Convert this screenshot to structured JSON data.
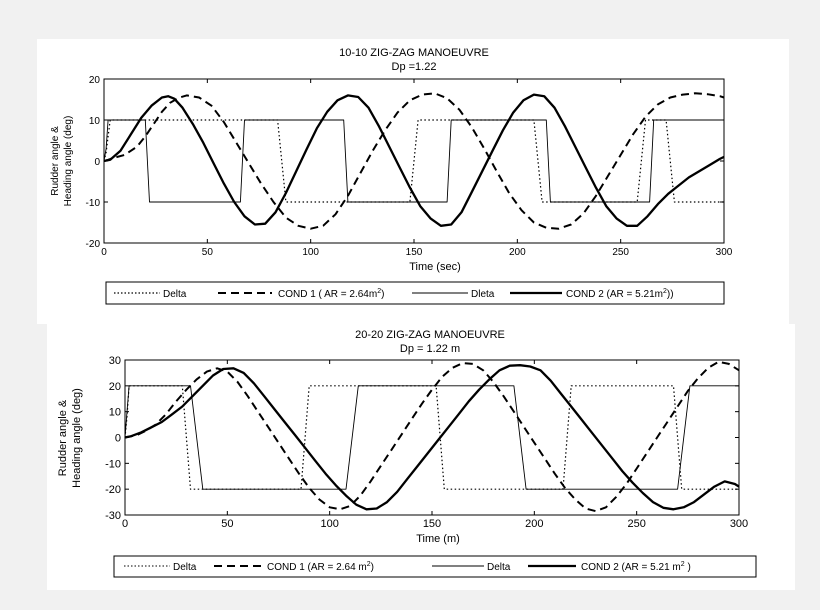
{
  "chart_data": [
    {
      "type": "line",
      "title": "10-10 ZIG-ZAG MANOEUVRE",
      "subtitle": "Dp =1.22",
      "xlabel": "Time (sec)",
      "ylabel_line1": "Rudder angle &",
      "ylabel_line2": "Heading angle (deg)",
      "xlim": [
        0,
        300
      ],
      "ylim": [
        -20,
        20
      ],
      "xticks": [
        0,
        50,
        100,
        150,
        200,
        250,
        300
      ],
      "yticks": [
        20,
        10,
        0,
        -10,
        -20
      ],
      "grid": false,
      "legend_position": "bottom",
      "series": [
        {
          "name": "Delta",
          "style": "dotted",
          "color": "#000000",
          "x": [
            0,
            1,
            2,
            3,
            4,
            5,
            6,
            7,
            84,
            88,
            148,
            152,
            208,
            212,
            258,
            262,
            272,
            276,
            300
          ],
          "y": [
            0,
            2,
            6,
            10,
            10,
            10,
            10,
            10,
            10,
            -10,
            -10,
            10,
            10,
            -10,
            -10,
            10,
            10,
            -10,
            -10
          ]
        },
        {
          "name": "COND 1 ( AR = 2.64m²)",
          "style": "dashed",
          "color": "#000000",
          "x": [
            0,
            2,
            5,
            10,
            16,
            20,
            24,
            28,
            32,
            36,
            40,
            46,
            52,
            58,
            64,
            70,
            76,
            82,
            88,
            94,
            100,
            106,
            112,
            118,
            124,
            130,
            136,
            142,
            148,
            154,
            160,
            166,
            172,
            178,
            184,
            190,
            196,
            202,
            208,
            214,
            220,
            226,
            232,
            238,
            244,
            250,
            256,
            262,
            268,
            274,
            280,
            286,
            292,
            298,
            300
          ],
          "y": [
            0,
            0.3,
            0.8,
            1.5,
            3.5,
            6,
            9,
            12,
            14.2,
            15.4,
            16,
            15.5,
            13.5,
            9.5,
            4.5,
            -0.5,
            -5.5,
            -10,
            -13.8,
            -15.8,
            -16.5,
            -15.8,
            -13,
            -8.5,
            -3,
            2.5,
            7.5,
            11.8,
            14.8,
            16.2,
            16.5,
            15.3,
            12.5,
            8.2,
            3,
            -2.5,
            -7.8,
            -12,
            -15,
            -16.3,
            -16.5,
            -15.5,
            -12.8,
            -8.5,
            -3.5,
            1.5,
            6.5,
            10.8,
            13.8,
            15.5,
            16.2,
            16.5,
            16.3,
            15.8,
            15.5
          ]
        },
        {
          "name": "Dleta",
          "style": "solid-thin",
          "color": "#000000",
          "x": [
            0,
            1,
            2,
            3,
            4,
            5,
            6,
            7,
            8,
            20,
            22,
            66,
            68,
            116,
            118,
            166,
            168,
            214,
            216,
            264,
            266,
            300
          ],
          "y": [
            0,
            3,
            10,
            10,
            10,
            10,
            10,
            10,
            10,
            10,
            -10,
            -10,
            10,
            10,
            -10,
            -10,
            10,
            10,
            -10,
            -10,
            10,
            10
          ]
        },
        {
          "name": "COND 2 (AR = 5.21m²))",
          "style": "solid-thick",
          "color": "#000000",
          "x": [
            0,
            3,
            8,
            13,
            18,
            23,
            28,
            31,
            34,
            38,
            43,
            48,
            53,
            58,
            63,
            68,
            73,
            78,
            83,
            88,
            93,
            98,
            103,
            108,
            113,
            118,
            123,
            128,
            133,
            138,
            143,
            148,
            153,
            158,
            163,
            168,
            173,
            178,
            183,
            188,
            193,
            198,
            203,
            208,
            213,
            218,
            223,
            228,
            233,
            238,
            243,
            248,
            253,
            258,
            263,
            268,
            273,
            278,
            283,
            288,
            293,
            298,
            300
          ],
          "y": [
            0,
            0.3,
            2.5,
            6.5,
            10.5,
            13.5,
            15.5,
            15.8,
            15.2,
            13,
            9,
            4.5,
            -0.5,
            -5.5,
            -10,
            -13.5,
            -15.5,
            -15.3,
            -12.5,
            -7.8,
            -2.5,
            2.8,
            8,
            12,
            14.8,
            16,
            15.6,
            13,
            8.5,
            3.5,
            -1.5,
            -6.5,
            -11,
            -14,
            -15.8,
            -15.5,
            -12.5,
            -7.5,
            -2.5,
            2.5,
            7.5,
            11.8,
            14.8,
            16.2,
            15.8,
            13,
            8.5,
            3.5,
            -1.5,
            -6.5,
            -11,
            -14,
            -15.8,
            -15.8,
            -13.5,
            -10.5,
            -8,
            -6,
            -4,
            -2.5,
            -1,
            0.5,
            1
          ]
        }
      ]
    },
    {
      "type": "line",
      "title": "20-20 ZIG-ZAG MANOEUVRE",
      "subtitle": "Dp = 1.22 m",
      "xlabel": "Time (m)",
      "ylabel_line1": "Rudder angle &",
      "ylabel_line2": "Heading angle (deg)",
      "xlim": [
        0,
        300
      ],
      "ylim": [
        -30,
        30
      ],
      "xticks": [
        0,
        50,
        100,
        150,
        200,
        250,
        300
      ],
      "yticks": [
        30,
        20,
        10,
        0,
        -10,
        -20,
        -30
      ],
      "grid": false,
      "legend_position": "bottom",
      "series": [
        {
          "name": "Delta",
          "style": "dotted",
          "color": "#000000",
          "x": [
            0,
            1,
            2,
            3,
            4,
            5,
            28,
            32,
            86,
            90,
            152,
            156,
            214,
            218,
            268,
            272,
            300
          ],
          "y": [
            0,
            8,
            20,
            20,
            20,
            20,
            20,
            -20,
            -20,
            20,
            20,
            -20,
            -20,
            20,
            20,
            -20,
            -20
          ]
        },
        {
          "name": "COND 1 (AR = 2.64 m²)",
          "style": "dashed",
          "color": "#000000",
          "x": [
            0,
            2,
            6,
            10,
            15,
            20,
            25,
            30,
            35,
            40,
            45,
            50,
            55,
            60,
            65,
            70,
            75,
            80,
            85,
            90,
            95,
            100,
            105,
            110,
            115,
            120,
            125,
            130,
            135,
            140,
            145,
            150,
            155,
            160,
            165,
            170,
            175,
            180,
            185,
            190,
            195,
            200,
            205,
            210,
            215,
            220,
            225,
            230,
            235,
            240,
            245,
            250,
            255,
            260,
            265,
            270,
            275,
            280,
            285,
            290,
            295,
            300
          ],
          "y": [
            0,
            0.3,
            1,
            2.5,
            5,
            9,
            14,
            18.5,
            22.5,
            25.5,
            26.8,
            25.5,
            21.5,
            16,
            10,
            4,
            -2,
            -8,
            -14,
            -19.5,
            -24,
            -27,
            -27.8,
            -26.5,
            -22.5,
            -17,
            -11,
            -5,
            1,
            7,
            13,
            18.5,
            23.5,
            27,
            28.8,
            28.5,
            26,
            21.5,
            16,
            10,
            4,
            -2,
            -8,
            -14,
            -19.5,
            -24,
            -27.5,
            -28.5,
            -27,
            -23,
            -18,
            -12,
            -6,
            0,
            6,
            12,
            18,
            23,
            27,
            29.3,
            28.5,
            26
          ]
        },
        {
          "name": "Delta",
          "style": "solid-thin",
          "color": "#000000",
          "x": [
            0,
            1,
            2,
            3,
            4,
            5,
            6,
            32,
            38,
            108,
            114,
            190,
            196,
            270,
            276,
            300
          ],
          "y": [
            0,
            10,
            20,
            20,
            20,
            20,
            20,
            20,
            -20,
            -20,
            20,
            20,
            -20,
            -20,
            20,
            20
          ]
        },
        {
          "name": "COND 2 (AR = 5.21 m² )",
          "style": "solid-thick",
          "color": "#000000",
          "x": [
            0,
            3,
            8,
            13,
            18,
            23,
            28,
            33,
            38,
            43,
            48,
            53,
            58,
            63,
            68,
            73,
            78,
            83,
            88,
            93,
            98,
            103,
            108,
            113,
            118,
            123,
            128,
            133,
            138,
            143,
            148,
            153,
            158,
            163,
            168,
            173,
            178,
            183,
            188,
            193,
            198,
            203,
            208,
            213,
            218,
            223,
            228,
            233,
            238,
            243,
            248,
            253,
            258,
            263,
            268,
            273,
            278,
            283,
            288,
            293,
            298,
            300
          ],
          "y": [
            0,
            0.5,
            2,
            4,
            6,
            9,
            12,
            16,
            20,
            24,
            26.5,
            26.8,
            25,
            21,
            16,
            11,
            6,
            1,
            -4,
            -9,
            -14,
            -18.5,
            -22.5,
            -26,
            -27.8,
            -27.5,
            -25,
            -21,
            -16,
            -11,
            -6,
            -1,
            4,
            9,
            14,
            18.5,
            22.5,
            26,
            27.8,
            28,
            27.5,
            26,
            22,
            17,
            12,
            7,
            2,
            -3,
            -8,
            -13,
            -17.5,
            -21.5,
            -25,
            -27.2,
            -27.8,
            -27,
            -25,
            -22,
            -19,
            -17,
            -18,
            -19
          ]
        }
      ]
    }
  ],
  "legend_top": {
    "delta_label": "Delta",
    "cond1_label": "COND 1 ( AR = 2.64m",
    "cond1_sup": "2",
    "cond1_close": ")",
    "dleta_label": "Dleta",
    "cond2_label": "COND 2 (AR = 5.21m",
    "cond2_sup": "2",
    "cond2_close": "))"
  },
  "legend_bottom": {
    "delta1_label": "Delta",
    "cond1_label": "COND 1 (AR = 2.64 m",
    "cond1_sup": "2",
    "cond1_close": ")",
    "delta2_label": "Delta",
    "cond2_label": "COND 2 (AR = 5.21 m",
    "cond2_sup": "2",
    "cond2_close": " )"
  }
}
